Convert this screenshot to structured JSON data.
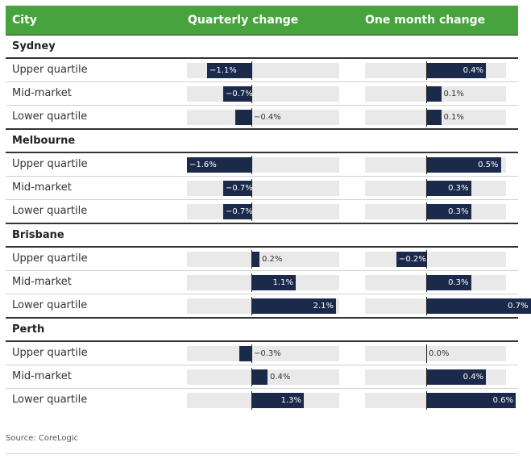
{
  "header": {
    "city": "City",
    "quarterly": "Quarterly change",
    "monthly": "One month change"
  },
  "colors": {
    "header_bg": "#46a33e",
    "bar": "#1b2a4a",
    "track": "#e9e9e9"
  },
  "chart_data": {
    "type": "bar",
    "orientation": "horizontal",
    "unit": "%",
    "quarterly_range": [
      -1.6,
      2.1
    ],
    "monthly_range": [
      -0.2,
      0.7
    ],
    "groups": [
      {
        "city": "Sydney",
        "rows": [
          {
            "label": "Upper quartile",
            "quarterly": -1.1,
            "quarterly_text": "−1.1%",
            "monthly": 0.4,
            "monthly_text": "0.4%"
          },
          {
            "label": "Mid-market",
            "quarterly": -0.7,
            "quarterly_text": "−0.7%",
            "monthly": 0.1,
            "monthly_text": "0.1%"
          },
          {
            "label": "Lower quartile",
            "quarterly": -0.4,
            "quarterly_text": "−0.4%",
            "monthly": 0.1,
            "monthly_text": "0.1%"
          }
        ]
      },
      {
        "city": "Melbourne",
        "rows": [
          {
            "label": "Upper quartile",
            "quarterly": -1.6,
            "quarterly_text": "−1.6%",
            "monthly": 0.5,
            "monthly_text": "0.5%"
          },
          {
            "label": "Mid-market",
            "quarterly": -0.7,
            "quarterly_text": "−0.7%",
            "monthly": 0.3,
            "monthly_text": "0.3%"
          },
          {
            "label": "Lower quartile",
            "quarterly": -0.7,
            "quarterly_text": "−0.7%",
            "monthly": 0.3,
            "monthly_text": "0.3%"
          }
        ]
      },
      {
        "city": "Brisbane",
        "rows": [
          {
            "label": "Upper quartile",
            "quarterly": 0.2,
            "quarterly_text": "0.2%",
            "monthly": -0.2,
            "monthly_text": "−0.2%"
          },
          {
            "label": "Mid-market",
            "quarterly": 1.1,
            "quarterly_text": "1.1%",
            "monthly": 0.3,
            "monthly_text": "0.3%"
          },
          {
            "label": "Lower quartile",
            "quarterly": 2.1,
            "quarterly_text": "2.1%",
            "monthly": 0.7,
            "monthly_text": "0.7%"
          }
        ]
      },
      {
        "city": "Perth",
        "rows": [
          {
            "label": "Upper quartile",
            "quarterly": -0.3,
            "quarterly_text": "−0.3%",
            "monthly": 0.0,
            "monthly_text": "0.0%"
          },
          {
            "label": "Mid-market",
            "quarterly": 0.4,
            "quarterly_text": "0.4%",
            "monthly": 0.4,
            "monthly_text": "0.4%"
          },
          {
            "label": "Lower quartile",
            "quarterly": 1.3,
            "quarterly_text": "1.3%",
            "monthly": 0.6,
            "monthly_text": "0.6%"
          }
        ]
      }
    ]
  },
  "source": "Source: CoreLogic"
}
